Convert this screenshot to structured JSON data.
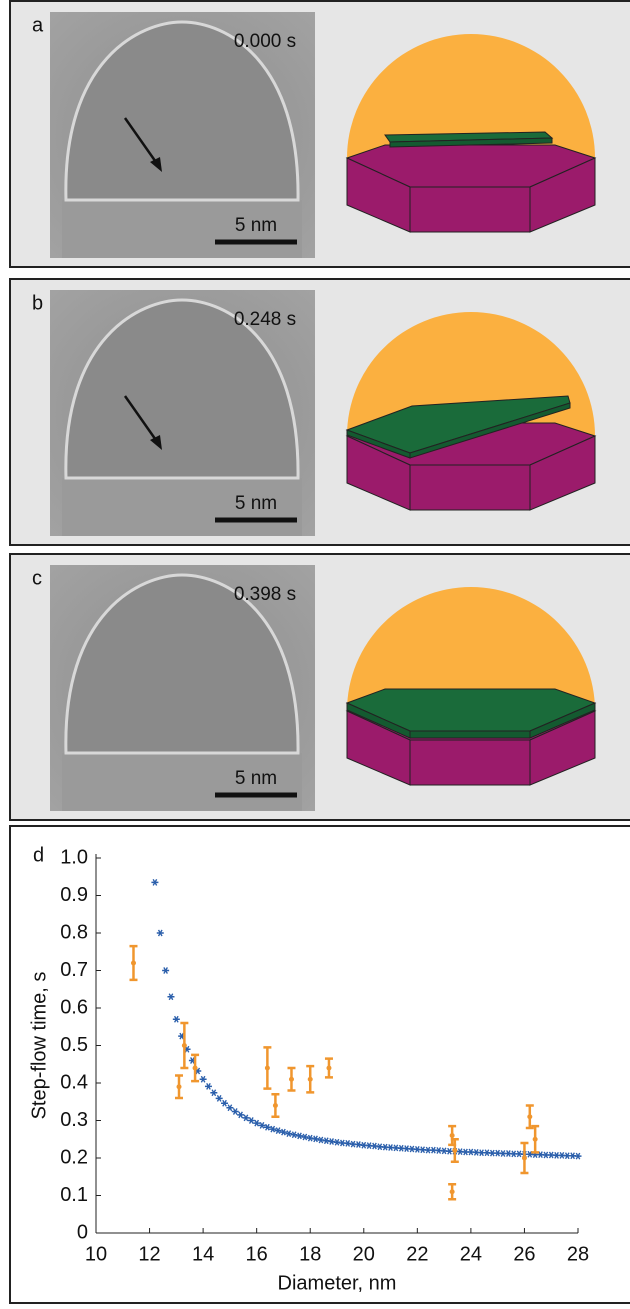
{
  "panels": [
    {
      "label": "a",
      "time": "0.000 s",
      "scale": "5 nm"
    },
    {
      "label": "b",
      "time": "0.248 s",
      "scale": "5 nm"
    },
    {
      "label": "c",
      "time": "0.398 s",
      "scale": "5 nm"
    }
  ],
  "chart_data": {
    "type": "scatter",
    "panel_label": "d",
    "xlabel": "Diameter, nm",
    "ylabel": "Step-flow time, s",
    "xlim": [
      10,
      28
    ],
    "ylim": [
      0,
      1
    ],
    "xticks": [
      10,
      12,
      14,
      16,
      18,
      20,
      22,
      24,
      26,
      28
    ],
    "yticks": [
      0,
      0.1,
      0.2,
      0.3,
      0.4,
      0.5,
      0.6,
      0.7,
      0.8,
      0.9,
      {
        "value": 1,
        "label": "1.0"
      }
    ],
    "series": [
      {
        "color": "#2b5fab",
        "marker": "asterisk",
        "x": [
          12.2,
          12.4,
          12.6,
          12.8,
          13.0,
          13.2,
          13.4,
          13.6,
          13.8,
          14.0,
          14.2,
          14.4,
          14.6,
          14.8,
          15.0,
          15.2,
          15.4,
          15.6,
          15.8,
          16.0,
          16.2,
          16.4,
          16.6,
          16.8,
          17.0,
          17.2,
          17.4,
          17.6,
          17.8,
          18.0,
          18.2,
          18.4,
          18.6,
          18.8,
          19.0,
          19.2,
          19.4,
          19.6,
          19.8,
          20.0,
          20.2,
          20.4,
          20.6,
          20.8,
          21.0,
          21.2,
          21.4,
          21.6,
          21.8,
          22.0,
          22.2,
          22.4,
          22.6,
          22.8,
          23.0,
          23.2,
          23.4,
          23.6,
          23.8,
          24.0,
          24.2,
          24.4,
          24.6,
          24.8,
          25.0,
          25.2,
          25.4,
          25.6,
          25.8,
          26.0,
          26.2,
          26.4,
          26.6,
          26.8,
          27.0,
          27.2,
          27.4,
          27.6,
          27.8,
          28.0
        ],
        "values": [
          0.935,
          0.8,
          0.7,
          0.63,
          0.57,
          0.525,
          0.49,
          0.46,
          0.432,
          0.41,
          0.391,
          0.374,
          0.359,
          0.346,
          0.334,
          0.324,
          0.315,
          0.307,
          0.3,
          0.293,
          0.287,
          0.282,
          0.277,
          0.273,
          0.269,
          0.265,
          0.262,
          0.259,
          0.256,
          0.253,
          0.251,
          0.248,
          0.246,
          0.244,
          0.242,
          0.24,
          0.239,
          0.237,
          0.236,
          0.234,
          0.233,
          0.232,
          0.23,
          0.229,
          0.228,
          0.227,
          0.226,
          0.225,
          0.224,
          0.223,
          0.222,
          0.221,
          0.221,
          0.22,
          0.219,
          0.218,
          0.218,
          0.217,
          0.216,
          0.216,
          0.215,
          0.214,
          0.214,
          0.213,
          0.213,
          0.212,
          0.212,
          0.211,
          0.211,
          0.21,
          0.21,
          0.209,
          0.209,
          0.208,
          0.208,
          0.207,
          0.207,
          0.206,
          0.206,
          0.205
        ]
      },
      {
        "color": "#f0962e",
        "marker": "errorbar",
        "x": [
          11.4,
          13.1,
          13.3,
          13.7,
          16.4,
          16.7,
          17.3,
          18.0,
          18.7,
          23.3,
          23.4,
          23.3,
          26.0,
          26.2,
          26.4
        ],
        "values": [
          0.72,
          0.39,
          0.5,
          0.44,
          0.44,
          0.34,
          0.41,
          0.41,
          0.44,
          0.26,
          0.22,
          0.11,
          0.2,
          0.31,
          0.25
        ],
        "errors": [
          0.045,
          0.03,
          0.06,
          0.035,
          0.055,
          0.03,
          0.03,
          0.035,
          0.025,
          0.025,
          0.03,
          0.02,
          0.04,
          0.03,
          0.035
        ]
      }
    ]
  }
}
